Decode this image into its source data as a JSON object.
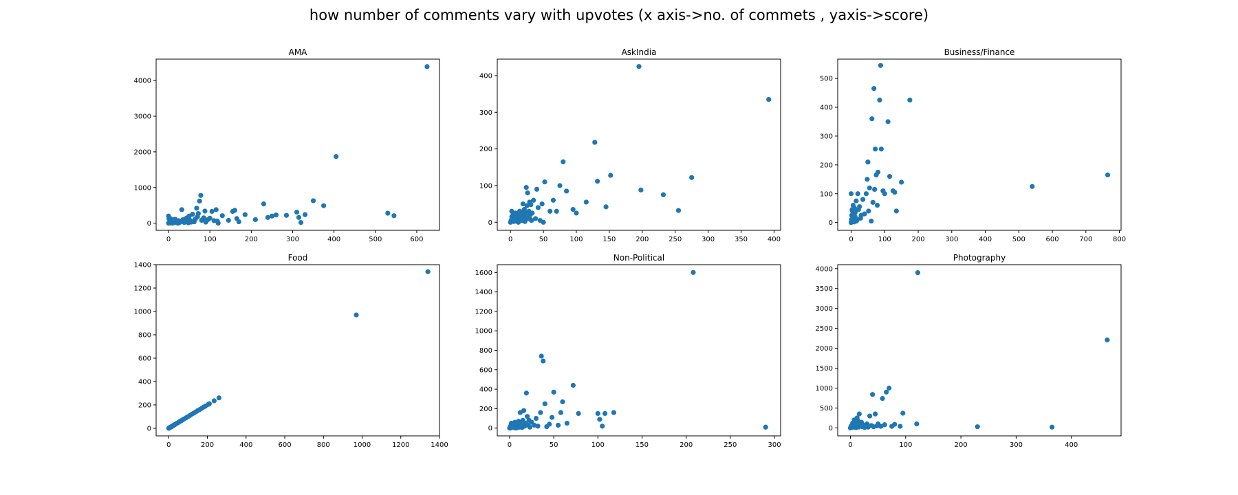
{
  "figure_title": "how number of comments vary with upvotes (x axis->no. of commets , yaxis->score)",
  "marker_color": "#1f77b4",
  "chart_data": [
    {
      "type": "scatter",
      "title": "AMA",
      "xlim": [
        -30,
        655
      ],
      "ylim": [
        -200,
        4600
      ],
      "xticks": [
        0,
        100,
        200,
        300,
        400,
        500,
        600
      ],
      "yticks": [
        0,
        1000,
        2000,
        3000,
        4000
      ],
      "points": [
        [
          0,
          0
        ],
        [
          1,
          10
        ],
        [
          2,
          20
        ],
        [
          3,
          40
        ],
        [
          4,
          5
        ],
        [
          5,
          80
        ],
        [
          6,
          120
        ],
        [
          8,
          60
        ],
        [
          10,
          30
        ],
        [
          12,
          15
        ],
        [
          15,
          100
        ],
        [
          18,
          50
        ],
        [
          20,
          10
        ],
        [
          22,
          0
        ],
        [
          25,
          5
        ],
        [
          28,
          30
        ],
        [
          30,
          60
        ],
        [
          32,
          380
        ],
        [
          35,
          100
        ],
        [
          38,
          20
        ],
        [
          40,
          50
        ],
        [
          42,
          130
        ],
        [
          45,
          150
        ],
        [
          48,
          10
        ],
        [
          50,
          200
        ],
        [
          52,
          80
        ],
        [
          55,
          30
        ],
        [
          58,
          250
        ],
        [
          60,
          60
        ],
        [
          62,
          40
        ],
        [
          65,
          120
        ],
        [
          68,
          420
        ],
        [
          70,
          180
        ],
        [
          72,
          270
        ],
        [
          75,
          620
        ],
        [
          78,
          780
        ],
        [
          80,
          80
        ],
        [
          85,
          150
        ],
        [
          88,
          340
        ],
        [
          90,
          30
        ],
        [
          95,
          100
        ],
        [
          100,
          140
        ],
        [
          105,
          330
        ],
        [
          110,
          70
        ],
        [
          115,
          380
        ],
        [
          118,
          60
        ],
        [
          120,
          0
        ],
        [
          130,
          210
        ],
        [
          145,
          80
        ],
        [
          155,
          330
        ],
        [
          160,
          360
        ],
        [
          165,
          130
        ],
        [
          170,
          40
        ],
        [
          185,
          240
        ],
        [
          210,
          100
        ],
        [
          230,
          540
        ],
        [
          240,
          160
        ],
        [
          250,
          200
        ],
        [
          260,
          230
        ],
        [
          285,
          220
        ],
        [
          310,
          310
        ],
        [
          315,
          160
        ],
        [
          320,
          20
        ],
        [
          330,
          240
        ],
        [
          350,
          630
        ],
        [
          375,
          490
        ],
        [
          405,
          1870
        ],
        [
          530,
          280
        ],
        [
          545,
          210
        ],
        [
          625,
          4390
        ],
        [
          0,
          200
        ],
        [
          1,
          130
        ],
        [
          3,
          100
        ],
        [
          5,
          50
        ],
        [
          7,
          20
        ],
        [
          10,
          0
        ],
        [
          12,
          90
        ],
        [
          14,
          40
        ],
        [
          16,
          110
        ],
        [
          24,
          70
        ]
      ]
    },
    {
      "type": "scatter",
      "title": "AskIndia",
      "xlim": [
        -20,
        410
      ],
      "ylim": [
        -22,
        445
      ],
      "xticks": [
        0,
        50,
        100,
        150,
        200,
        250,
        300,
        350,
        400
      ],
      "yticks": [
        0,
        100,
        200,
        300,
        400
      ],
      "points": [
        [
          0,
          0
        ],
        [
          1,
          5
        ],
        [
          2,
          15
        ],
        [
          3,
          8
        ],
        [
          4,
          20
        ],
        [
          5,
          2
        ],
        [
          6,
          12
        ],
        [
          7,
          25
        ],
        [
          8,
          3
        ],
        [
          9,
          18
        ],
        [
          10,
          10
        ],
        [
          11,
          6
        ],
        [
          12,
          22
        ],
        [
          13,
          15
        ],
        [
          14,
          30
        ],
        [
          15,
          4
        ],
        [
          16,
          28
        ],
        [
          17,
          10
        ],
        [
          18,
          20
        ],
        [
          19,
          50
        ],
        [
          20,
          8
        ],
        [
          21,
          35
        ],
        [
          22,
          15
        ],
        [
          23,
          25
        ],
        [
          24,
          95
        ],
        [
          25,
          45
        ],
        [
          26,
          80
        ],
        [
          27,
          10
        ],
        [
          28,
          30
        ],
        [
          29,
          55
        ],
        [
          30,
          20
        ],
        [
          31,
          48
        ],
        [
          32,
          5
        ],
        [
          33,
          25
        ],
        [
          35,
          60
        ],
        [
          38,
          10
        ],
        [
          40,
          90
        ],
        [
          42,
          40
        ],
        [
          45,
          5
        ],
        [
          48,
          50
        ],
        [
          50,
          0
        ],
        [
          52,
          110
        ],
        [
          60,
          30
        ],
        [
          65,
          60
        ],
        [
          70,
          30
        ],
        [
          75,
          100
        ],
        [
          80,
          165
        ],
        [
          85,
          85
        ],
        [
          95,
          35
        ],
        [
          100,
          25
        ],
        [
          115,
          55
        ],
        [
          128,
          218
        ],
        [
          132,
          112
        ],
        [
          145,
          42
        ],
        [
          152,
          128
        ],
        [
          195,
          425
        ],
        [
          198,
          88
        ],
        [
          232,
          75
        ],
        [
          255,
          32
        ],
        [
          275,
          122
        ],
        [
          392,
          335
        ],
        [
          2,
          30
        ],
        [
          5,
          10
        ],
        [
          8,
          25
        ],
        [
          12,
          0
        ],
        [
          15,
          12
        ],
        [
          18,
          5
        ],
        [
          22,
          2
        ],
        [
          26,
          15
        ],
        [
          30,
          8
        ]
      ]
    },
    {
      "type": "scatter",
      "title": "Business/Finance",
      "xlim": [
        -40,
        805
      ],
      "ylim": [
        -27,
        567
      ],
      "xticks": [
        0,
        100,
        200,
        300,
        400,
        500,
        600,
        700,
        800
      ],
      "yticks": [
        0,
        100,
        200,
        300,
        400,
        500
      ],
      "points": [
        [
          0,
          0
        ],
        [
          1,
          10
        ],
        [
          2,
          25
        ],
        [
          3,
          5
        ],
        [
          4,
          40
        ],
        [
          5,
          15
        ],
        [
          6,
          60
        ],
        [
          7,
          20
        ],
        [
          8,
          30
        ],
        [
          9,
          2
        ],
        [
          10,
          50
        ],
        [
          12,
          35
        ],
        [
          15,
          75
        ],
        [
          18,
          10
        ],
        [
          20,
          100
        ],
        [
          22,
          45
        ],
        [
          25,
          55
        ],
        [
          28,
          15
        ],
        [
          30,
          25
        ],
        [
          35,
          80
        ],
        [
          40,
          30
        ],
        [
          45,
          100
        ],
        [
          48,
          150
        ],
        [
          50,
          210
        ],
        [
          52,
          40
        ],
        [
          55,
          120
        ],
        [
          60,
          5
        ],
        [
          62,
          360
        ],
        [
          65,
          70
        ],
        [
          68,
          465
        ],
        [
          70,
          115
        ],
        [
          72,
          255
        ],
        [
          75,
          165
        ],
        [
          78,
          60
        ],
        [
          80,
          175
        ],
        [
          85,
          425
        ],
        [
          88,
          545
        ],
        [
          90,
          255
        ],
        [
          95,
          110
        ],
        [
          100,
          100
        ],
        [
          110,
          350
        ],
        [
          115,
          160
        ],
        [
          125,
          110
        ],
        [
          130,
          105
        ],
        [
          135,
          40
        ],
        [
          150,
          140
        ],
        [
          175,
          425
        ],
        [
          540,
          125
        ],
        [
          765,
          165
        ],
        [
          0,
          100
        ],
        [
          3,
          45
        ],
        [
          5,
          30
        ],
        [
          8,
          15
        ],
        [
          12,
          20
        ],
        [
          16,
          5
        ]
      ]
    },
    {
      "type": "scatter",
      "title": "Food",
      "xlim": [
        -65,
        1400
      ],
      "ylim": [
        -65,
        1400
      ],
      "xticks": [
        0,
        200,
        400,
        600,
        800,
        1000,
        1200,
        1400
      ],
      "yticks": [
        0,
        200,
        400,
        600,
        800,
        1000,
        1200,
        1400
      ],
      "points": [
        [
          0,
          0
        ],
        [
          2,
          2
        ],
        [
          4,
          5
        ],
        [
          6,
          6
        ],
        [
          8,
          9
        ],
        [
          10,
          10
        ],
        [
          12,
          13
        ],
        [
          15,
          15
        ],
        [
          18,
          18
        ],
        [
          20,
          21
        ],
        [
          24,
          24
        ],
        [
          28,
          28
        ],
        [
          32,
          32
        ],
        [
          36,
          36
        ],
        [
          40,
          41
        ],
        [
          45,
          45
        ],
        [
          50,
          50
        ],
        [
          55,
          55
        ],
        [
          60,
          61
        ],
        [
          65,
          65
        ],
        [
          70,
          70
        ],
        [
          75,
          76
        ],
        [
          80,
          80
        ],
        [
          90,
          90
        ],
        [
          100,
          100
        ],
        [
          110,
          110
        ],
        [
          120,
          121
        ],
        [
          130,
          130
        ],
        [
          140,
          140
        ],
        [
          150,
          151
        ],
        [
          160,
          160
        ],
        [
          170,
          170
        ],
        [
          180,
          181
        ],
        [
          190,
          190
        ],
        [
          205,
          205
        ],
        [
          210,
          210
        ],
        [
          235,
          235
        ],
        [
          260,
          260
        ],
        [
          970,
          970
        ],
        [
          1340,
          1340
        ]
      ]
    },
    {
      "type": "scatter",
      "title": "Non-Political",
      "xlim": [
        -14,
        307
      ],
      "ylim": [
        -80,
        1680
      ],
      "xticks": [
        0,
        50,
        100,
        150,
        200,
        250,
        300
      ],
      "yticks": [
        0,
        200,
        400,
        600,
        800,
        1000,
        1200,
        1400,
        1600
      ],
      "points": [
        [
          0,
          0
        ],
        [
          1,
          20
        ],
        [
          2,
          50
        ],
        [
          3,
          10
        ],
        [
          4,
          30
        ],
        [
          5,
          5
        ],
        [
          6,
          60
        ],
        [
          7,
          15
        ],
        [
          8,
          40
        ],
        [
          9,
          25
        ],
        [
          10,
          70
        ],
        [
          11,
          10
        ],
        [
          12,
          160
        ],
        [
          13,
          35
        ],
        [
          14,
          5
        ],
        [
          15,
          80
        ],
        [
          16,
          180
        ],
        [
          17,
          20
        ],
        [
          18,
          50
        ],
        [
          19,
          360
        ],
        [
          20,
          120
        ],
        [
          21,
          30
        ],
        [
          22,
          80
        ],
        [
          23,
          10
        ],
        [
          25,
          60
        ],
        [
          28,
          30
        ],
        [
          30,
          100
        ],
        [
          32,
          20
        ],
        [
          35,
          160
        ],
        [
          36,
          740
        ],
        [
          38,
          690
        ],
        [
          40,
          250
        ],
        [
          42,
          15
        ],
        [
          45,
          40
        ],
        [
          48,
          110
        ],
        [
          50,
          370
        ],
        [
          55,
          30
        ],
        [
          58,
          160
        ],
        [
          60,
          270
        ],
        [
          65,
          50
        ],
        [
          72,
          440
        ],
        [
          78,
          150
        ],
        [
          100,
          150
        ],
        [
          102,
          90
        ],
        [
          105,
          20
        ],
        [
          108,
          150
        ],
        [
          118,
          160
        ],
        [
          208,
          1600
        ],
        [
          290,
          10
        ],
        [
          1,
          0
        ],
        [
          3,
          15
        ],
        [
          5,
          40
        ],
        [
          7,
          0
        ],
        [
          9,
          5
        ],
        [
          11,
          45
        ],
        [
          13,
          20
        ]
      ]
    },
    {
      "type": "scatter",
      "title": "Photography",
      "xlim": [
        -23,
        490
      ],
      "ylim": [
        -200,
        4100
      ],
      "xticks": [
        0,
        100,
        200,
        300,
        400
      ],
      "yticks": [
        0,
        500,
        1000,
        1500,
        2000,
        2500,
        3000,
        3500,
        4000
      ],
      "points": [
        [
          0,
          0
        ],
        [
          1,
          30
        ],
        [
          2,
          60
        ],
        [
          3,
          10
        ],
        [
          4,
          120
        ],
        [
          5,
          20
        ],
        [
          6,
          80
        ],
        [
          7,
          200
        ],
        [
          8,
          40
        ],
        [
          9,
          150
        ],
        [
          10,
          5
        ],
        [
          11,
          100
        ],
        [
          12,
          250
        ],
        [
          13,
          60
        ],
        [
          14,
          180
        ],
        [
          15,
          20
        ],
        [
          16,
          350
        ],
        [
          18,
          90
        ],
        [
          20,
          140
        ],
        [
          22,
          30
        ],
        [
          24,
          70
        ],
        [
          26,
          10
        ],
        [
          28,
          50
        ],
        [
          30,
          100
        ],
        [
          32,
          20
        ],
        [
          35,
          300
        ],
        [
          38,
          60
        ],
        [
          40,
          840
        ],
        [
          42,
          30
        ],
        [
          45,
          350
        ],
        [
          48,
          50
        ],
        [
          50,
          100
        ],
        [
          55,
          40
        ],
        [
          58,
          740
        ],
        [
          62,
          80
        ],
        [
          65,
          900
        ],
        [
          70,
          1000
        ],
        [
          75,
          40
        ],
        [
          80,
          90
        ],
        [
          90,
          40
        ],
        [
          95,
          370
        ],
        [
          120,
          100
        ],
        [
          122,
          3900
        ],
        [
          230,
          30
        ],
        [
          365,
          20
        ],
        [
          465,
          2210
        ]
      ]
    }
  ]
}
